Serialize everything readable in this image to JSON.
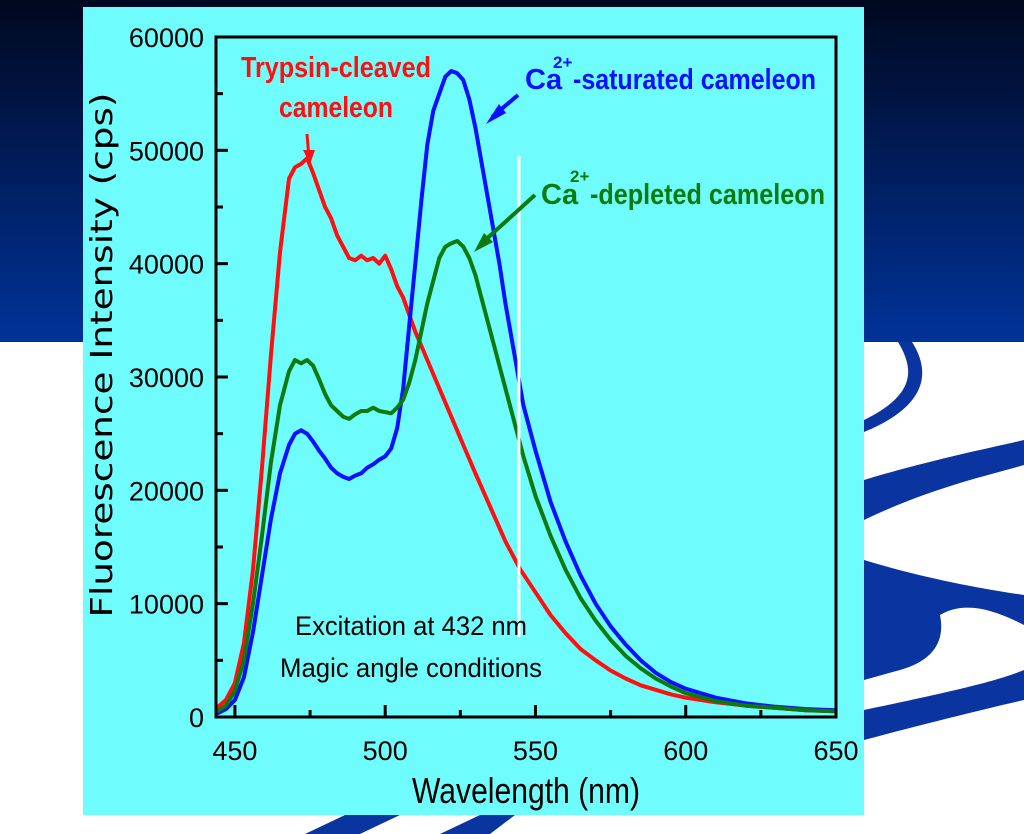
{
  "slide": {
    "bg_dark": "#000820",
    "bg_blue": "#003399",
    "panel_color": "#6efcfc"
  },
  "chart_data": {
    "type": "line",
    "title": "",
    "xlabel": "Wavelength (nm)",
    "ylabel": "Fluorescence Intensity (cps)",
    "xlim": [
      443.7,
      650
    ],
    "ylim": [
      0,
      60000
    ],
    "x_ticks": [
      450,
      500,
      550,
      600,
      650
    ],
    "x_minor_ticks": [
      475,
      525,
      575,
      625
    ],
    "y_ticks": [
      0,
      10000,
      20000,
      30000,
      40000,
      50000,
      60000
    ],
    "y_tick_labels": [
      "0",
      "10000",
      "20000",
      "30000",
      "40000",
      "50000",
      "60000"
    ],
    "y_minor_ticks": [
      5000,
      15000,
      25000,
      35000,
      45000,
      55000
    ],
    "grid": false,
    "series": [
      {
        "name": "Trypsin-cleaved cameleon",
        "color": "#ff1010",
        "x": [
          444,
          447,
          450,
          453,
          456,
          459,
          462,
          465,
          468,
          470,
          472,
          474,
          476,
          478,
          480,
          482,
          484,
          486,
          488,
          490,
          492,
          494,
          496,
          498,
          500,
          502,
          504,
          506,
          508,
          510,
          514,
          518,
          522,
          526,
          530,
          535,
          540,
          545,
          550,
          555,
          560,
          565,
          570,
          575,
          580,
          585,
          590,
          595,
          600,
          610,
          620,
          630,
          640,
          650
        ],
        "y": [
          800,
          1500,
          3000,
          6500,
          13000,
          22000,
          32000,
          41000,
          47500,
          48500,
          48800,
          49300,
          48000,
          46500,
          45000,
          44000,
          42500,
          41500,
          40500,
          40300,
          40700,
          40300,
          40500,
          40000,
          40700,
          39500,
          38000,
          37000,
          35500,
          34000,
          31500,
          29000,
          26500,
          24000,
          21500,
          18500,
          15500,
          13000,
          11000,
          9000,
          7400,
          6000,
          5000,
          4100,
          3400,
          2800,
          2400,
          2000,
          1700,
          1300,
          1000,
          800,
          600,
          500
        ]
      },
      {
        "name": "Ca2+-saturated cameleon",
        "color": "#0a10ff",
        "x": [
          444,
          447,
          450,
          453,
          456,
          459,
          462,
          465,
          468,
          470,
          472,
          474,
          476,
          478,
          480,
          482,
          484,
          486,
          488,
          490,
          492,
          494,
          496,
          498,
          500,
          502,
          504,
          506,
          508,
          510,
          512,
          514,
          516,
          518,
          520,
          522,
          524,
          526,
          528,
          530,
          532,
          534,
          536,
          538,
          540,
          543,
          546,
          550,
          555,
          560,
          565,
          570,
          575,
          580,
          585,
          590,
          595,
          600,
          610,
          620,
          630,
          640,
          650
        ],
        "y": [
          300,
          700,
          1500,
          3500,
          7500,
          12500,
          17500,
          21500,
          24000,
          25000,
          25300,
          25000,
          24300,
          23500,
          22800,
          22000,
          21500,
          21200,
          21000,
          21300,
          21500,
          22000,
          22300,
          22700,
          23000,
          23700,
          25500,
          29000,
          34500,
          40000,
          45500,
          50500,
          53500,
          55000,
          56500,
          57000,
          56800,
          56200,
          54500,
          52000,
          49000,
          46000,
          43000,
          40000,
          36500,
          32000,
          27500,
          23500,
          19000,
          15500,
          12500,
          10000,
          8000,
          6400,
          5000,
          3900,
          3100,
          2500,
          1700,
          1200,
          900,
          700,
          600
        ]
      },
      {
        "name": "Ca2+-depleted cameleon",
        "color": "#0d7a0d",
        "x": [
          444,
          447,
          450,
          453,
          456,
          459,
          462,
          465,
          468,
          470,
          472,
          474,
          476,
          478,
          480,
          482,
          484,
          486,
          488,
          490,
          492,
          494,
          496,
          498,
          500,
          502,
          504,
          506,
          508,
          510,
          512,
          514,
          516,
          518,
          520,
          522,
          524,
          526,
          528,
          530,
          532,
          534,
          536,
          538,
          540,
          543,
          546,
          550,
          555,
          560,
          565,
          570,
          575,
          580,
          585,
          590,
          595,
          600,
          610,
          620,
          630,
          640,
          650
        ],
        "y": [
          500,
          1000,
          2300,
          5000,
          10000,
          16000,
          22500,
          27500,
          30500,
          31500,
          31200,
          31500,
          31000,
          29800,
          28500,
          27500,
          27000,
          26500,
          26300,
          26700,
          27000,
          27000,
          27300,
          27000,
          26900,
          26800,
          27300,
          28000,
          29500,
          31500,
          34000,
          36500,
          38500,
          40500,
          41500,
          41800,
          42000,
          41500,
          40500,
          39000,
          37000,
          35000,
          33000,
          31000,
          29000,
          26000,
          23000,
          19500,
          16000,
          13000,
          10500,
          8500,
          6800,
          5400,
          4300,
          3400,
          2700,
          2100,
          1400,
          1000,
          800,
          600,
          500
        ]
      }
    ],
    "annotations": [
      {
        "id": "trypsin",
        "lines": [
          "Trypsin-cleaved",
          "cameleon"
        ],
        "color": "#ff1010",
        "points_to_x": 474,
        "points_to_y": 49300
      },
      {
        "id": "saturated",
        "prefix": "Ca",
        "sup": "2+",
        "suffix": "-saturated cameleon",
        "color": "#0a10ff",
        "points_to_x": 531,
        "points_to_y": 52000
      },
      {
        "id": "depleted",
        "prefix": "Ca",
        "sup": "2+",
        "suffix": "-depleted cameleon",
        "color": "#0d7a0d",
        "points_to_x": 527,
        "points_to_y": 41000
      }
    ],
    "notes": [
      "Excitation at 432 nm",
      "Magic angle conditions"
    ],
    "marker_line_x_nm": 544.5,
    "marker_line_y_range": [
      0,
      49500
    ]
  }
}
